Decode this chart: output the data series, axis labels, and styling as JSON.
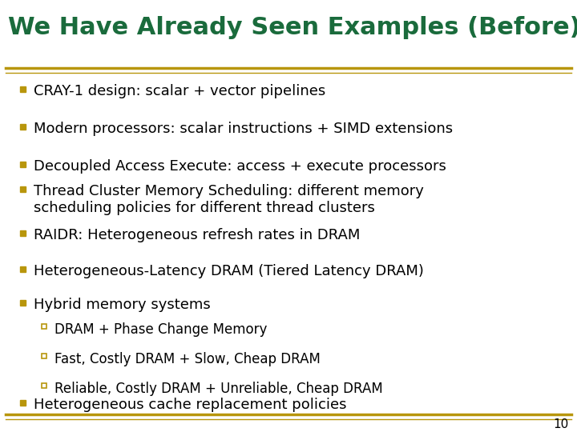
{
  "title": "We Have Already Seen Examples (Before)",
  "title_color": "#1a6b3c",
  "title_fontsize": 22,
  "background_color": "#ffffff",
  "line_color": "#b8960c",
  "bullet_color": "#b8960c",
  "text_color": "#000000",
  "page_number": "10",
  "bullet1_items": [
    "CRAY-1 design: scalar + vector pipelines",
    "Modern processors: scalar instructions + SIMD extensions",
    "Decoupled Access Execute: access + execute processors"
  ],
  "bullet2_items": [
    "Thread Cluster Memory Scheduling: different memory\nscheduling policies for different thread clusters",
    "RAIDR: Heterogeneous refresh rates in DRAM",
    "Heterogeneous-Latency DRAM (Tiered Latency DRAM)",
    "Hybrid memory systems"
  ],
  "sub_items": [
    "DRAM + Phase Change Memory",
    "Fast, Costly DRAM + Slow, Cheap DRAM",
    "Reliable, Costly DRAM + Unreliable, Cheap DRAM"
  ],
  "bullet3_items": [
    "Heterogeneous cache replacement policies"
  ],
  "font_family": "DejaVu Sans",
  "main_fontsize": 13,
  "sub_fontsize": 12
}
